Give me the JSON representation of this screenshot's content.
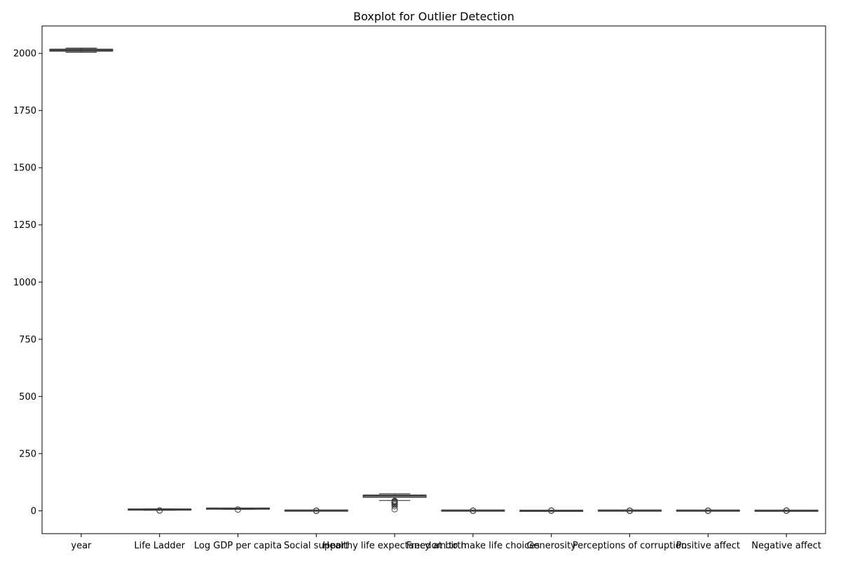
{
  "chart_data": {
    "type": "boxplot",
    "title": "Boxplot for Outlier Detection",
    "xlabel": "",
    "ylabel": "",
    "ylim": [
      -100,
      2120
    ],
    "yticks": [
      0,
      250,
      500,
      750,
      1000,
      1250,
      1500,
      1750,
      2000
    ],
    "grid": false,
    "colors": {
      "box_stroke": "#3d3d3d",
      "axis": "#000000"
    },
    "categories": [
      "year",
      "Life Ladder",
      "Log GDP per capita",
      "Social support",
      "Healthy life expectancy at birth",
      "Freedom to make life choices",
      "Generosity",
      "Perceptions of corruption",
      "Positive affect",
      "Negative affect"
    ],
    "boxes": [
      {
        "min": 2005,
        "q1": 2010,
        "median": 2014,
        "q3": 2018,
        "max": 2023,
        "outliers": []
      },
      {
        "min": 2.3,
        "q1": 4.6,
        "median": 5.4,
        "q3": 6.3,
        "max": 8.0,
        "outliers": [
          1.3,
          1.5
        ]
      },
      {
        "min": 6.6,
        "q1": 8.5,
        "median": 9.5,
        "q3": 10.4,
        "max": 11.7,
        "outliers": [
          5.5
        ]
      },
      {
        "min": 0.43,
        "q1": 0.75,
        "median": 0.83,
        "q3": 0.9,
        "max": 0.99,
        "outliers": [
          0.2,
          0.3,
          0.35,
          0.4
        ]
      },
      {
        "min": 45,
        "q1": 59,
        "median": 65,
        "q3": 68.5,
        "max": 74.5,
        "outliers": [
          7,
          20,
          27,
          32,
          35,
          38,
          40,
          41,
          43
        ]
      },
      {
        "min": 0.4,
        "q1": 0.66,
        "median": 0.77,
        "q3": 0.86,
        "max": 0.99,
        "outliers": [
          0.23,
          0.3,
          0.36
        ]
      },
      {
        "min": -0.34,
        "q1": -0.11,
        "median": -0.02,
        "q3": 0.09,
        "max": 0.38,
        "outliers": [
          0.45,
          0.6,
          0.7
        ]
      },
      {
        "min": 0.5,
        "q1": 0.69,
        "median": 0.8,
        "q3": 0.87,
        "max": 0.98,
        "outliers": [
          0.03,
          0.1,
          0.2,
          0.3,
          0.4
        ]
      },
      {
        "min": 0.4,
        "q1": 0.57,
        "median": 0.66,
        "q3": 0.74,
        "max": 0.88,
        "outliers": [
          0.18,
          0.25,
          0.3
        ]
      },
      {
        "min": 0.08,
        "q1": 0.21,
        "median": 0.26,
        "q3": 0.33,
        "max": 0.5,
        "outliers": [
          0.55,
          0.6,
          0.65,
          0.7
        ]
      }
    ]
  }
}
